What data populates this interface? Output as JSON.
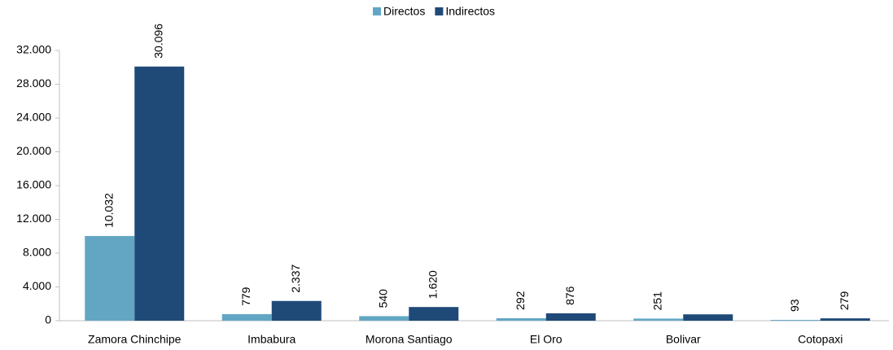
{
  "chart_data": {
    "type": "bar",
    "categories": [
      "Zamora Chinchipe",
      "Imbabura",
      "Morona Santiago",
      "El Oro",
      "Bolivar",
      "Cotopaxi"
    ],
    "series": [
      {
        "name": "Directos",
        "color": "#62a6c4",
        "values": [
          10032,
          779,
          540,
          292,
          251,
          93
        ],
        "value_labels": [
          "10.032",
          "779",
          "540",
          "292",
          "251",
          "93"
        ]
      },
      {
        "name": "Indirectos",
        "color": "#1f4a78",
        "values": [
          30096,
          2337,
          1620,
          876,
          753,
          279
        ],
        "value_labels": [
          "30.096",
          "2.337",
          "1.620",
          "876",
          null,
          "279"
        ]
      }
    ],
    "ylim": [
      0,
      32000
    ],
    "yticks": [
      0,
      {
        "value": 4000,
        "label": "4.000"
      },
      {
        "value": 8000,
        "label": "8.000"
      },
      {
        "value": 12000,
        "label": "12.000"
      },
      {
        "value": 16000,
        "label": "16.000"
      },
      {
        "value": 20000,
        "label": "20.000"
      },
      {
        "value": 24000,
        "label": "24.000"
      },
      {
        "value": 28000,
        "label": "28.000"
      },
      {
        "value": 32000,
        "label": "32.000"
      }
    ],
    "legend": "top",
    "grid": false
  }
}
